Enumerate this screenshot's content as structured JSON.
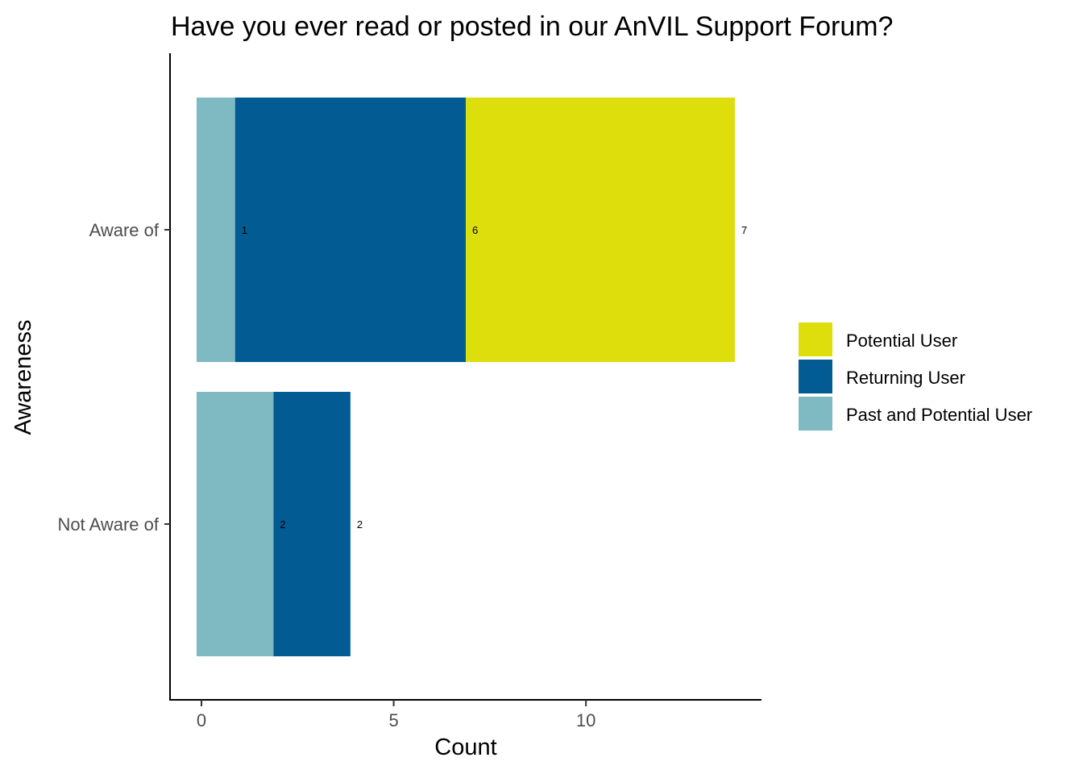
{
  "chart_data": {
    "type": "bar",
    "orientation": "horizontal",
    "stacked": true,
    "title": "Have you ever read or posted in our AnVIL Support Forum?",
    "xlabel": "Count",
    "ylabel": "Awareness",
    "categories": [
      "Aware of",
      "Not Aware of"
    ],
    "series": [
      {
        "name": "Past and Potential User",
        "color": "#7fb9c1",
        "values": [
          1,
          2
        ]
      },
      {
        "name": "Returning User",
        "color": "#035b93",
        "values": [
          6,
          2
        ]
      },
      {
        "name": "Potential User",
        "color": "#dfde0d",
        "values": [
          7,
          0
        ]
      }
    ],
    "data_labels": [
      [
        "1",
        "6",
        "7"
      ],
      [
        "2",
        "2",
        ""
      ]
    ],
    "xlim": [
      0,
      14.7
    ],
    "xticks": [
      0,
      5,
      10
    ],
    "grid": false,
    "legend": {
      "placement": "right",
      "entries": [
        "Potential User",
        "Returning User",
        "Past and Potential User"
      ]
    }
  }
}
